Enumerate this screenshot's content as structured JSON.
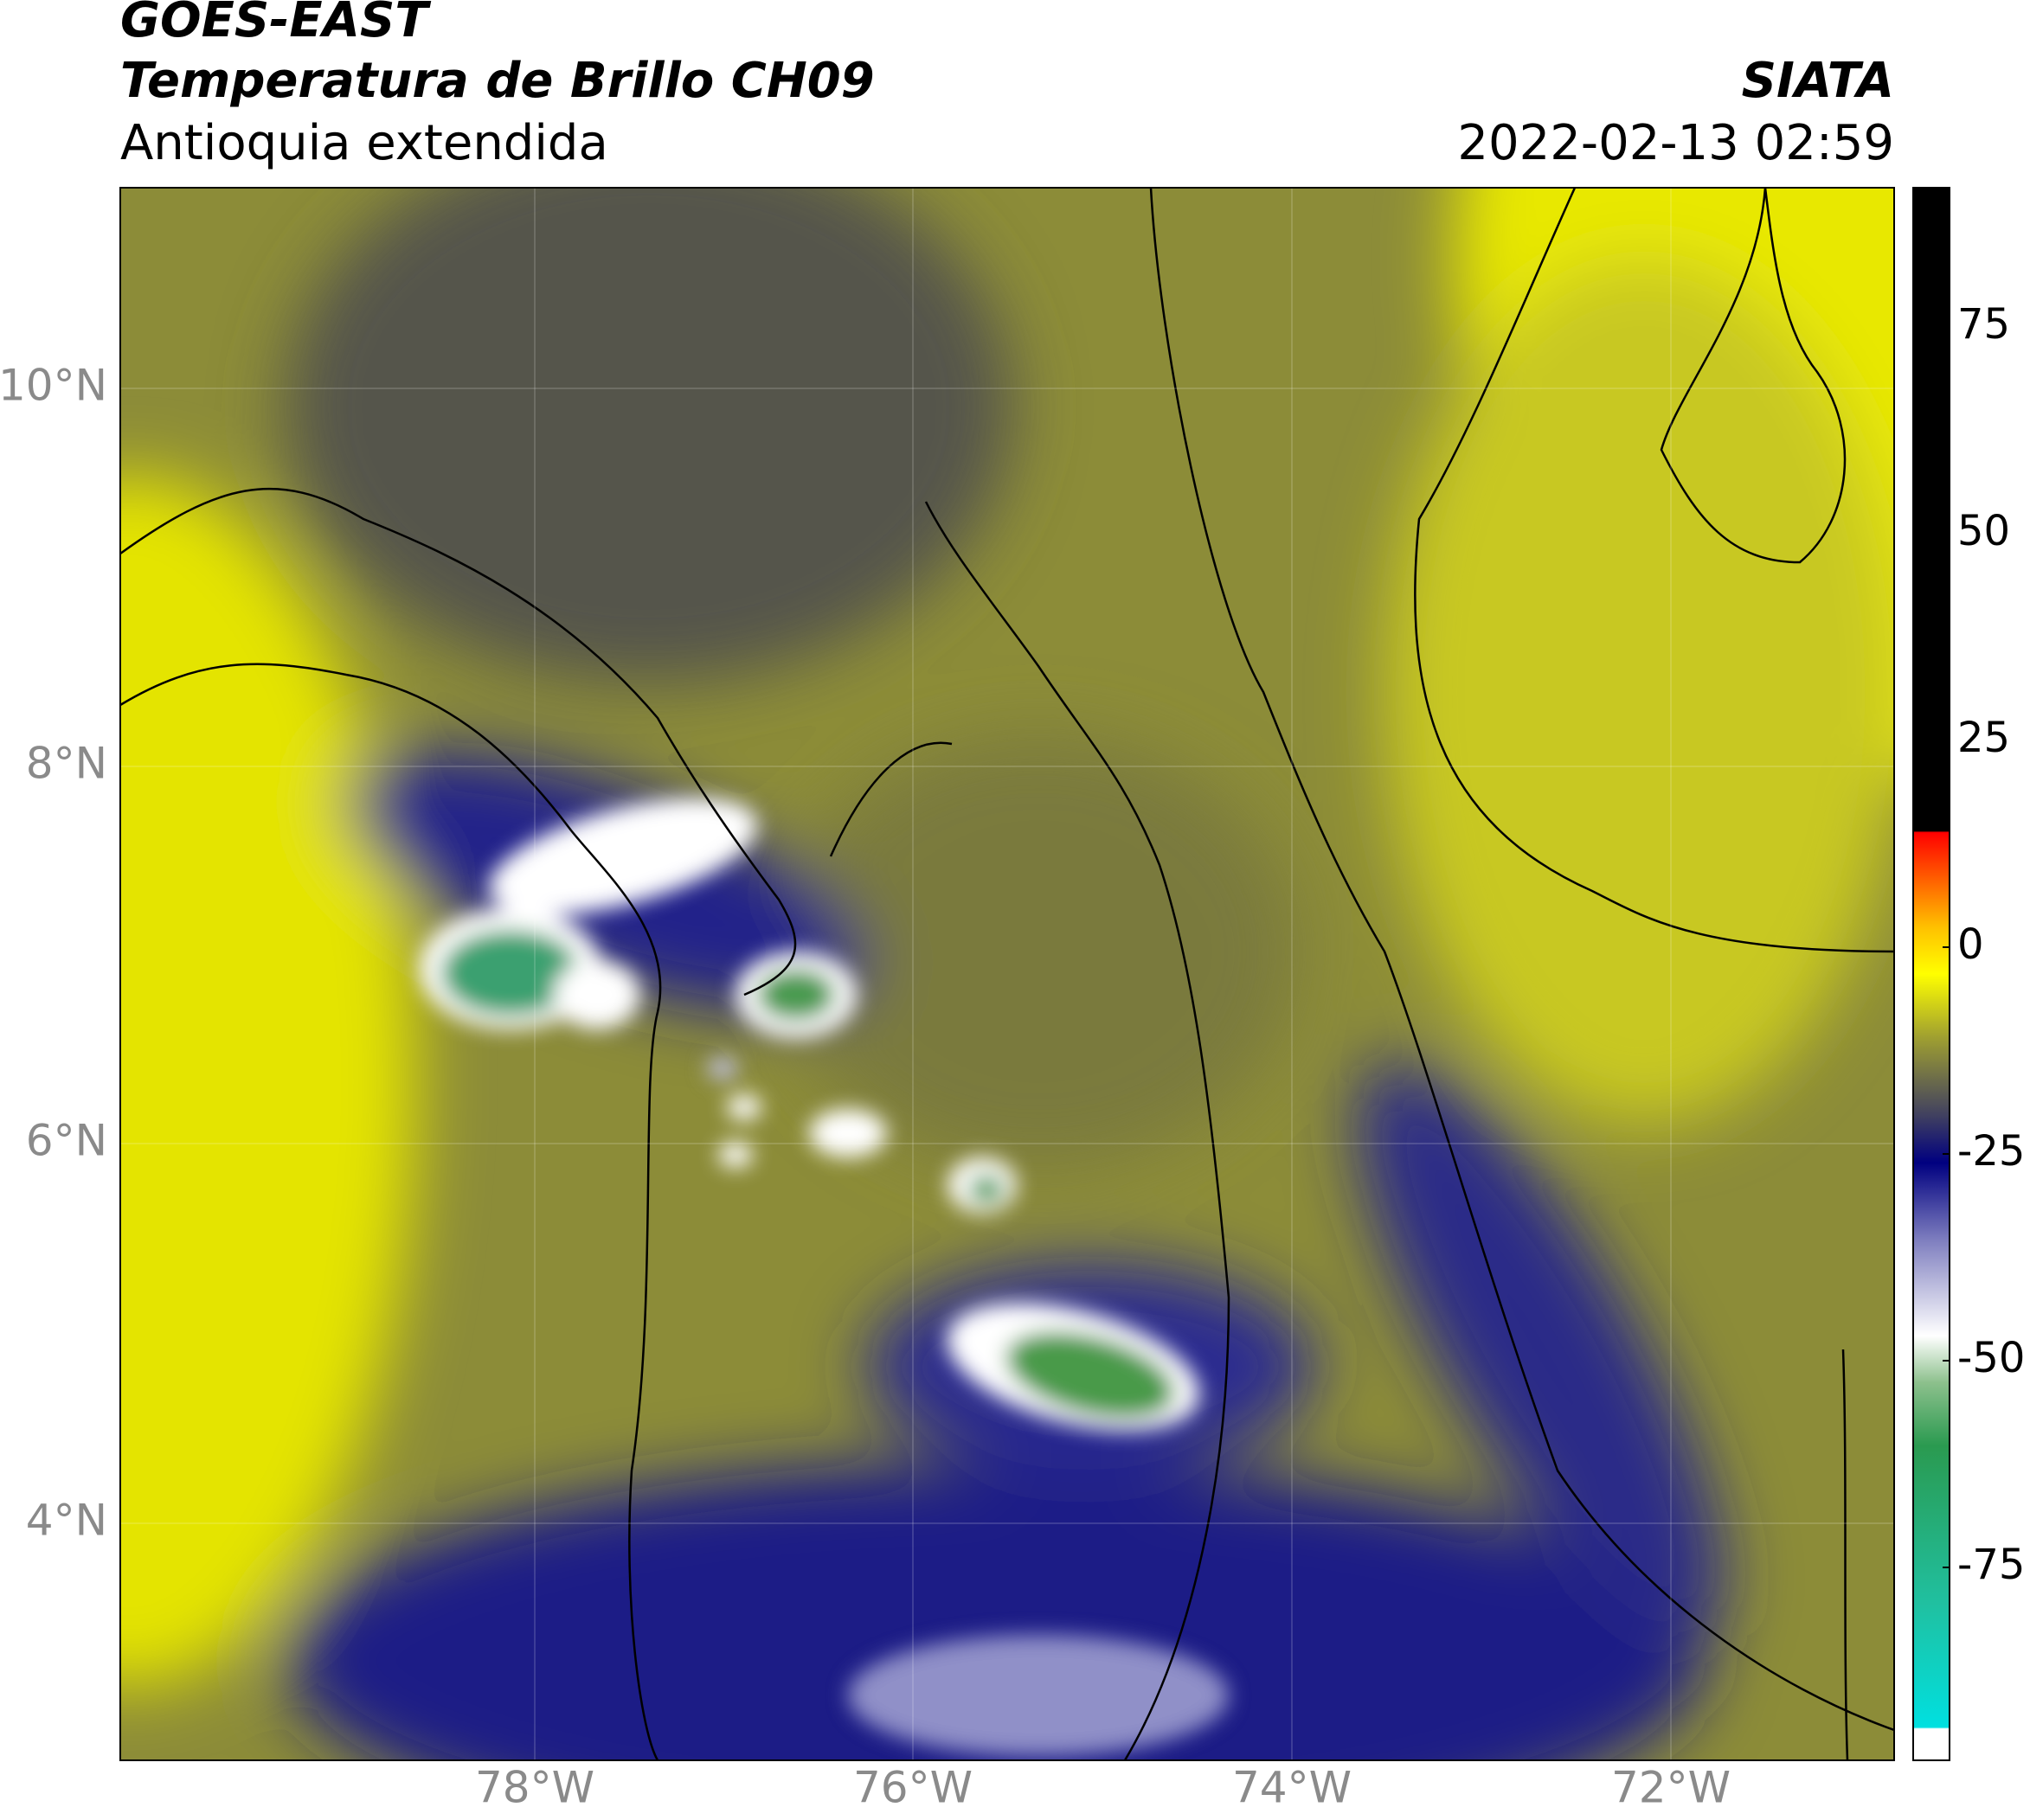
{
  "header": {
    "title": "GOES-EAST",
    "subtitle": "Temperatura de Brillo CH09",
    "region": "Antioquia extendida",
    "source": "SIATA",
    "timestamp": "2022-02-13 02:59"
  },
  "map": {
    "lat_labels": [
      "10°N",
      "8°N",
      "6°N",
      "4°N"
    ],
    "lon_labels": [
      "78°W",
      "76°W",
      "74°W",
      "72°W"
    ]
  },
  "colorbar": {
    "ticks": [
      75,
      50,
      25,
      0,
      -25,
      -50,
      -75
    ]
  }
}
